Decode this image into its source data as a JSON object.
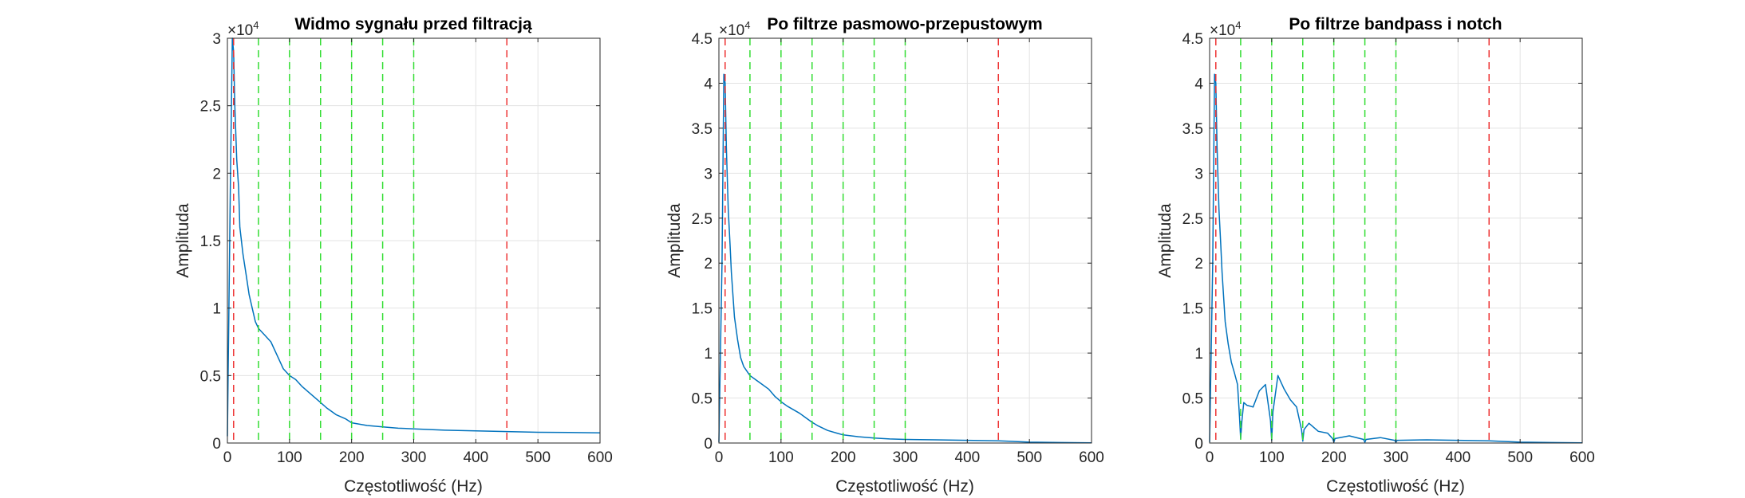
{
  "colors": {
    "series": "#0072BD",
    "green_lines": "#33dd33",
    "red_lines": "#ee3333",
    "grid": "#e3e3e3",
    "axis": "#262626"
  },
  "chart_data": [
    {
      "type": "line",
      "title": "Widmo sygnału przed filtracją",
      "xlabel": "Częstotliwość (Hz)",
      "ylabel": "Amplituda",
      "xlim": [
        0,
        600
      ],
      "ylim": [
        0,
        30000
      ],
      "y_exponent_label": "×10",
      "y_exponent_power": "4",
      "xticks": [
        0,
        100,
        200,
        300,
        400,
        500,
        600
      ],
      "xtick_labels": [
        "0",
        "100",
        "200",
        "300",
        "400",
        "500",
        "600"
      ],
      "yticks": [
        0,
        5000,
        10000,
        15000,
        20000,
        25000,
        30000
      ],
      "ytick_labels": [
        "0",
        "0.5",
        "1",
        "1.5",
        "2",
        "2.5",
        "3"
      ],
      "grid": true,
      "vlines_green": [
        50,
        100,
        150,
        200,
        250,
        300
      ],
      "vlines_red": [
        10,
        450
      ],
      "series": [
        {
          "x": [
            0,
            5,
            8,
            10,
            12,
            15,
            18,
            20,
            25,
            30,
            35,
            40,
            45,
            50,
            60,
            70,
            80,
            90,
            100,
            110,
            120,
            130,
            140,
            150,
            160,
            175,
            190,
            200,
            225,
            250,
            275,
            300,
            350,
            400,
            450,
            500,
            550,
            600
          ],
          "y": [
            500,
            20000,
            30000,
            29000,
            25000,
            21000,
            19000,
            16000,
            14000,
            12500,
            11000,
            10000,
            9000,
            8500,
            8000,
            7500,
            6500,
            5500,
            5000,
            4700,
            4200,
            3800,
            3400,
            3000,
            2600,
            2100,
            1800,
            1500,
            1300,
            1200,
            1100,
            1050,
            950,
            900,
            850,
            800,
            780,
            750
          ]
        }
      ]
    },
    {
      "type": "line",
      "title": "Po filtrze pasmowo-przepustowym",
      "xlabel": "Częstotliwość (Hz)",
      "ylabel": "Amplituda",
      "xlim": [
        0,
        600
      ],
      "ylim": [
        0,
        45000
      ],
      "y_exponent_label": "×10",
      "y_exponent_power": "4",
      "xticks": [
        0,
        100,
        200,
        300,
        400,
        500,
        600
      ],
      "xtick_labels": [
        "0",
        "100",
        "200",
        "300",
        "400",
        "500",
        "600"
      ],
      "yticks": [
        0,
        5000,
        10000,
        15000,
        20000,
        25000,
        30000,
        35000,
        40000,
        45000
      ],
      "ytick_labels": [
        "0",
        "0.5",
        "1",
        "1.5",
        "2",
        "2.5",
        "3",
        "3.5",
        "4",
        "4.5"
      ],
      "grid": true,
      "vlines_green": [
        50,
        100,
        150,
        200,
        250,
        300
      ],
      "vlines_red": [
        10,
        450
      ],
      "series": [
        {
          "x": [
            0,
            5,
            8,
            10,
            12,
            15,
            18,
            20,
            25,
            30,
            35,
            40,
            45,
            50,
            60,
            70,
            80,
            90,
            100,
            110,
            120,
            130,
            140,
            150,
            160,
            175,
            190,
            200,
            225,
            250,
            275,
            300,
            350,
            400,
            450,
            500,
            550,
            600
          ],
          "y": [
            100,
            20000,
            41000,
            40000,
            33000,
            26000,
            22000,
            19000,
            14000,
            11500,
            9500,
            8500,
            8000,
            7500,
            7000,
            6500,
            6000,
            5200,
            4600,
            4100,
            3700,
            3300,
            2800,
            2300,
            1900,
            1400,
            1100,
            900,
            700,
            550,
            450,
            400,
            350,
            300,
            250,
            100,
            50,
            30
          ]
        }
      ]
    },
    {
      "type": "line",
      "title": "Po filtrze bandpass i notch",
      "xlabel": "Częstotliwość (Hz)",
      "ylabel": "Amplituda",
      "xlim": [
        0,
        600
      ],
      "ylim": [
        0,
        45000
      ],
      "y_exponent_label": "×10",
      "y_exponent_power": "4",
      "xticks": [
        0,
        100,
        200,
        300,
        400,
        500,
        600
      ],
      "xtick_labels": [
        "0",
        "100",
        "200",
        "300",
        "400",
        "500",
        "600"
      ],
      "yticks": [
        0,
        5000,
        10000,
        15000,
        20000,
        25000,
        30000,
        35000,
        40000,
        45000
      ],
      "ytick_labels": [
        "0",
        "0.5",
        "1",
        "1.5",
        "2",
        "2.5",
        "3",
        "3.5",
        "4",
        "4.5"
      ],
      "grid": true,
      "vlines_green": [
        50,
        100,
        150,
        200,
        250,
        300
      ],
      "vlines_red": [
        10,
        450
      ],
      "series": [
        {
          "x": [
            0,
            5,
            8,
            10,
            12,
            15,
            18,
            20,
            25,
            30,
            35,
            40,
            45,
            48,
            50,
            52,
            55,
            60,
            70,
            80,
            90,
            98,
            100,
            102,
            110,
            120,
            130,
            140,
            148,
            150,
            152,
            160,
            175,
            190,
            198,
            200,
            202,
            225,
            248,
            250,
            252,
            275,
            298,
            300,
            302,
            350,
            400,
            450,
            500,
            550,
            600
          ],
          "y": [
            100,
            20000,
            41000,
            40000,
            33000,
            26000,
            22000,
            19000,
            13500,
            11000,
            9000,
            7800,
            6500,
            3000,
            500,
            2500,
            4500,
            4200,
            4000,
            5800,
            6500,
            2500,
            300,
            3500,
            7500,
            6000,
            4800,
            4000,
            1500,
            200,
            1500,
            2200,
            1300,
            1100,
            500,
            100,
            500,
            800,
            400,
            100,
            400,
            600,
            300,
            100,
            300,
            350,
            300,
            250,
            100,
            50,
            30
          ]
        }
      ]
    }
  ]
}
